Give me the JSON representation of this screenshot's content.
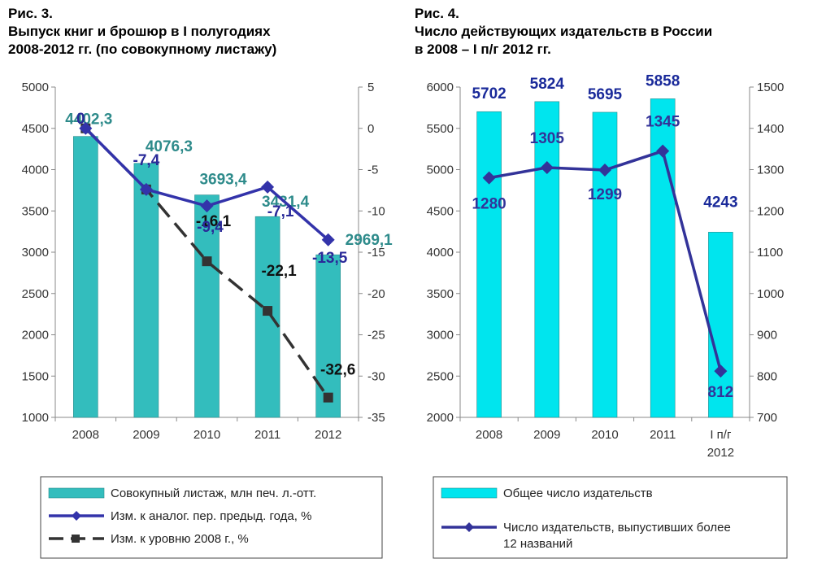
{
  "chart_data": [
    {
      "type": "bar",
      "title_lines": [
        "Рис. 3.",
        "Выпуск книг и брошюр в I полугодиях",
        "2008-2012 гг. (по совокупному листажу)"
      ],
      "categories": [
        "2008",
        "2009",
        "2010",
        "2011",
        "2012"
      ],
      "y_left": {
        "min": 1000,
        "max": 5000,
        "step": 500,
        "ticks": [
          "1000",
          "1500",
          "2000",
          "2500",
          "3000",
          "3500",
          "4000",
          "4500",
          "5000"
        ]
      },
      "y_right": {
        "min": -35,
        "max": 5,
        "step": 5,
        "ticks": [
          "-35",
          "-30",
          "-25",
          "-20",
          "-15",
          "-10",
          "-5",
          "0",
          "5"
        ]
      },
      "series": [
        {
          "name": "Совокупный листаж, млн печ. л.-отт.",
          "kind": "bar",
          "axis": "left",
          "color": "#33bdbd",
          "values": [
            4402.3,
            4076.3,
            3693.4,
            3431.4,
            2969.1
          ],
          "labels": [
            "4402,3",
            "4076,3",
            "3693,4",
            "3431,4",
            "2969,1"
          ],
          "label_color": "#2e8b8b"
        },
        {
          "name": "Изм. к аналог. пер. предыд. года, %",
          "kind": "line",
          "axis": "right",
          "color": "#3333aa",
          "values": [
            0,
            -7.4,
            -9.4,
            -7.1,
            -13.5
          ],
          "labels": [
            "0",
            "-7,4",
            "-9,4",
            "-7,1",
            "-13,5"
          ]
        },
        {
          "name": "Изм. к уровню 2008 г., %",
          "kind": "dashed-line",
          "axis": "right",
          "color": "#333333",
          "values": [
            0,
            -7.4,
            -16.1,
            -22.1,
            -32.6
          ],
          "labels": [
            "",
            "",
            "-16,1",
            "-22,1",
            "-32,6"
          ]
        }
      ],
      "grid": false,
      "legend_position": "bottom"
    },
    {
      "type": "bar",
      "title_lines": [
        "Рис. 4.",
        "Число действующих издательств в России",
        "в 2008 – I п/г 2012 гг."
      ],
      "categories": [
        [
          "2008"
        ],
        [
          "2009"
        ],
        [
          "2010"
        ],
        [
          "2011"
        ],
        [
          "I п/г",
          "2012"
        ]
      ],
      "y_left": {
        "min": 2000,
        "max": 6000,
        "step": 500,
        "ticks": [
          "2000",
          "2500",
          "3000",
          "3500",
          "4000",
          "4500",
          "5000",
          "5500",
          "6000"
        ]
      },
      "y_right": {
        "min": 700,
        "max": 1500,
        "step": 100,
        "ticks": [
          "700",
          "800",
          "900",
          "1000",
          "1100",
          "1200",
          "1300",
          "1400",
          "1500"
        ]
      },
      "series": [
        {
          "name": "Общее число издательств",
          "kind": "bar",
          "axis": "left",
          "color": "#00e5ee",
          "values": [
            5702,
            5824,
            5695,
            5858,
            4243
          ],
          "labels": [
            "5702",
            "5824",
            "5695",
            "5858",
            "4243"
          ],
          "label_color": "#1a2a9a"
        },
        {
          "name": "Число издательств, выпустивших более 12 названий",
          "legend_lines": [
            "Число издательств, выпустивших более",
            "12 названий"
          ],
          "kind": "line",
          "axis": "right",
          "color": "#333399",
          "values": [
            1280,
            1305,
            1299,
            1345,
            812
          ],
          "labels": [
            "1280",
            "1305",
            "1299",
            "1345",
            "812"
          ]
        }
      ],
      "grid": false,
      "legend_position": "bottom"
    }
  ]
}
